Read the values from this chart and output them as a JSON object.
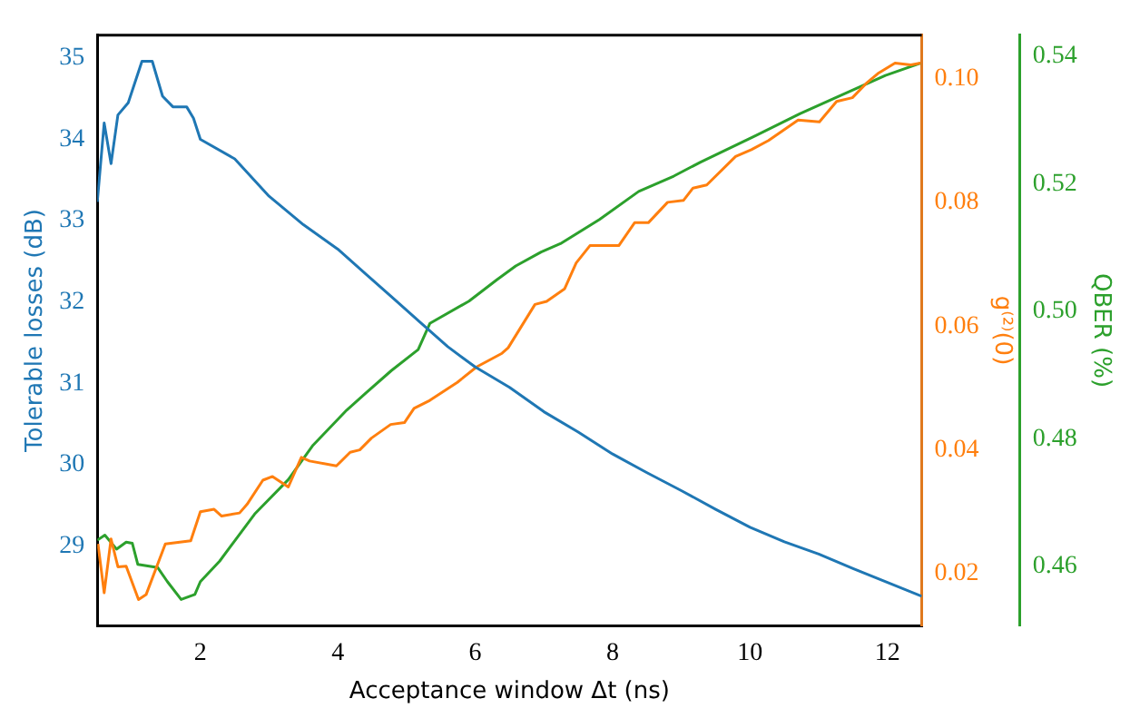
{
  "chart_data": {
    "type": "line",
    "xlabel": "Acceptance window Δt (ns)",
    "ylabel": "Tolerable losses (dB)",
    "y2label": "g⁽²⁾(0)",
    "y3label": "QBER (%)",
    "xlim": [
      0.5,
      12.5
    ],
    "xticks": [
      2,
      4,
      6,
      8,
      10,
      12
    ],
    "ylim": [
      28.02,
      35.28
    ],
    "yticks": [
      29,
      30,
      31,
      32,
      33,
      34,
      35
    ],
    "y2lim": [
      0.0116,
      0.107
    ],
    "y2ticks": [
      0.02,
      0.04,
      0.06,
      0.08,
      {
        "value": 0.1,
        "label": "0.10"
      }
    ],
    "y3lim": [
      0.4507,
      0.5433
    ],
    "y3ticks": [
      0.46,
      0.48,
      {
        "value": 0.5,
        "label": "0.50"
      },
      0.52,
      0.54
    ],
    "grid": false,
    "legend": false,
    "line_style": "solid",
    "marker": "none",
    "series": [
      {
        "color": "#1f77b4",
        "axis": "y",
        "x": [
          0.5,
          0.6,
          0.7,
          0.8,
          0.95,
          1.15,
          1.3,
          1.45,
          1.6,
          1.8,
          1.9,
          2.0,
          2.5,
          3.0,
          3.5,
          4.0,
          4.4,
          4.8,
          5.2,
          5.6,
          6.0,
          6.5,
          7.0,
          7.5,
          8.0,
          8.5,
          9.0,
          9.5,
          10.0,
          10.5,
          11.0,
          11.5,
          12.0,
          12.5
        ],
        "values": [
          33.23,
          34.2,
          33.7,
          34.3,
          34.45,
          34.96,
          34.96,
          34.53,
          34.4,
          34.4,
          34.26,
          34.0,
          33.76,
          33.3,
          32.95,
          32.65,
          32.35,
          32.05,
          31.75,
          31.45,
          31.2,
          30.95,
          30.65,
          30.4,
          30.13,
          29.9,
          29.68,
          29.45,
          29.23,
          29.05,
          28.9,
          28.72,
          28.55,
          28.38
        ]
      },
      {
        "color": "#ff7f0e",
        "axis": "y2",
        "x": [
          0.51,
          0.6,
          0.7,
          0.8,
          0.92,
          1.1,
          1.21,
          1.49,
          1.86,
          2.0,
          2.2,
          2.31,
          2.57,
          2.68,
          2.91,
          3.05,
          3.28,
          3.47,
          3.59,
          3.98,
          4.18,
          4.32,
          4.49,
          4.77,
          4.97,
          5.11,
          5.34,
          5.74,
          6.02,
          6.39,
          6.48,
          6.87,
          7.04,
          7.3,
          7.47,
          7.67,
          7.81,
          8.09,
          8.32,
          8.52,
          8.8,
          9.03,
          9.17,
          9.37,
          9.79,
          10.02,
          10.27,
          10.7,
          11.01,
          11.26,
          11.49,
          11.69,
          11.86,
          12.11,
          12.34,
          12.48
        ],
        "values": [
          0.0248,
          0.0169,
          0.0256,
          0.0211,
          0.0212,
          0.0158,
          0.0166,
          0.0248,
          0.0253,
          0.03,
          0.0304,
          0.0293,
          0.0298,
          0.0312,
          0.0351,
          0.0357,
          0.034,
          0.0388,
          0.0382,
          0.0374,
          0.0396,
          0.04,
          0.0419,
          0.0441,
          0.0444,
          0.0467,
          0.048,
          0.0509,
          0.0534,
          0.0556,
          0.0565,
          0.0635,
          0.064,
          0.066,
          0.0702,
          0.073,
          0.073,
          0.073,
          0.0767,
          0.0767,
          0.08,
          0.0803,
          0.0823,
          0.0828,
          0.0874,
          0.0885,
          0.09,
          0.0933,
          0.093,
          0.0963,
          0.0969,
          0.0992,
          0.1008,
          0.1025,
          0.1022,
          0.1025
        ]
      },
      {
        "color": "#2ca02c",
        "axis": "y3",
        "x": [
          0.5,
          0.61,
          0.78,
          0.92,
          1.01,
          1.09,
          1.38,
          1.52,
          1.72,
          1.92,
          2.0,
          2.28,
          2.79,
          3.28,
          3.64,
          4.13,
          4.41,
          4.78,
          5.17,
          5.34,
          5.91,
          6.31,
          6.59,
          6.96,
          7.24,
          7.81,
          8.38,
          8.89,
          9.28,
          10.07,
          10.73,
          11.29,
          11.97,
          12.48
        ],
        "values": [
          0.4641,
          0.4649,
          0.4627,
          0.4638,
          0.4636,
          0.4603,
          0.4598,
          0.4576,
          0.4548,
          0.4556,
          0.4576,
          0.4608,
          0.4682,
          0.4736,
          0.479,
          0.4845,
          0.4872,
          0.4907,
          0.494,
          0.4981,
          0.5016,
          0.5049,
          0.5071,
          0.5093,
          0.5106,
          0.5144,
          0.5188,
          0.5212,
          0.5234,
          0.5275,
          0.531,
          0.5337,
          0.537,
          0.5389
        ]
      }
    ]
  }
}
